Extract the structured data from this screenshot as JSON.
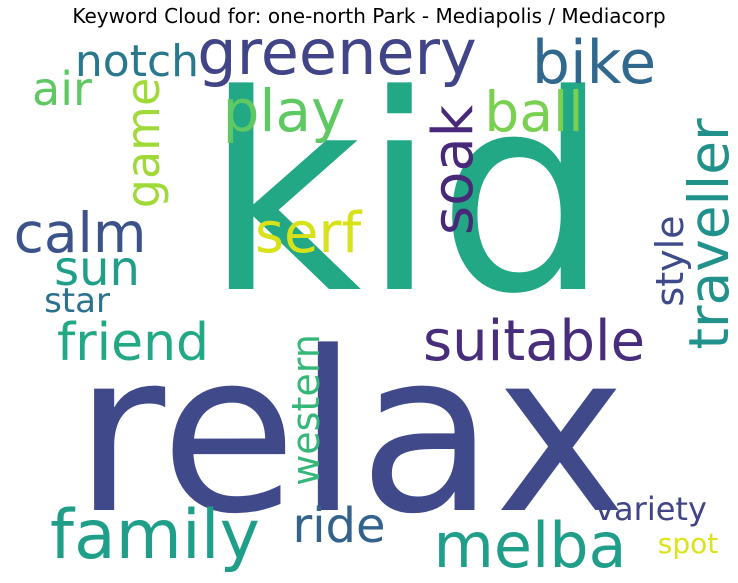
{
  "title": "Keyword Cloud for: one-north Park - Mediapolis / Mediacorp",
  "words": [
    {
      "text": "kid",
      "color": "#22A884"
    },
    {
      "text": "relax",
      "color": "#404A8B"
    },
    {
      "text": "greenery",
      "color": "#414487"
    },
    {
      "text": "bike",
      "color": "#31688E"
    },
    {
      "text": "notch",
      "color": "#2A788E"
    },
    {
      "text": "air",
      "color": "#5EC962"
    },
    {
      "text": "play",
      "color": "#5EC962"
    },
    {
      "text": "ball",
      "color": "#7AD151"
    },
    {
      "text": "game",
      "color": "#A0DA39"
    },
    {
      "text": "soak",
      "color": "#482878"
    },
    {
      "text": "calm",
      "color": "#3B528B"
    },
    {
      "text": "serf",
      "color": "#D8E219"
    },
    {
      "text": "traveller",
      "color": "#21918C"
    },
    {
      "text": "sun",
      "color": "#1F9E89"
    },
    {
      "text": "style",
      "color": "#3E4A89"
    },
    {
      "text": "star",
      "color": "#2C728E"
    },
    {
      "text": "friend",
      "color": "#22A884"
    },
    {
      "text": "suitable",
      "color": "#472D7B"
    },
    {
      "text": "western",
      "color": "#35B779"
    },
    {
      "text": "family",
      "color": "#1F9E89"
    },
    {
      "text": "ride",
      "color": "#33638D"
    },
    {
      "text": "melba",
      "color": "#1F9E89"
    },
    {
      "text": "variety",
      "color": "#414487"
    },
    {
      "text": "spot",
      "color": "#DCE319"
    }
  ]
}
